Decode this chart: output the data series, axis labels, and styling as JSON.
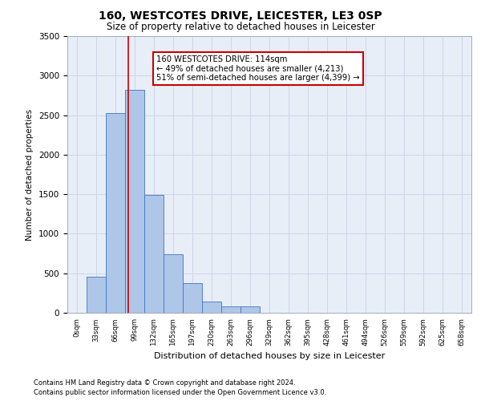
{
  "title1": "160, WESTCOTES DRIVE, LEICESTER, LE3 0SP",
  "title2": "Size of property relative to detached houses in Leicester",
  "xlabel": "Distribution of detached houses by size in Leicester",
  "ylabel": "Number of detached properties",
  "footnote1": "Contains HM Land Registry data © Crown copyright and database right 2024.",
  "footnote2": "Contains public sector information licensed under the Open Government Licence v3.0.",
  "bin_labels": [
    "0sqm",
    "33sqm",
    "66sqm",
    "99sqm",
    "132sqm",
    "165sqm",
    "197sqm",
    "230sqm",
    "263sqm",
    "296sqm",
    "329sqm",
    "362sqm",
    "395sqm",
    "428sqm",
    "461sqm",
    "494sqm",
    "526sqm",
    "559sqm",
    "592sqm",
    "625sqm",
    "658sqm"
  ],
  "bar_values": [
    5,
    460,
    2530,
    2820,
    1490,
    740,
    375,
    140,
    80,
    80,
    0,
    0,
    0,
    0,
    0,
    0,
    0,
    0,
    0,
    0,
    0
  ],
  "bar_color": "#aec6e8",
  "bar_edge_color": "#4472c4",
  "red_line_x": 3.15,
  "annotation_text": "160 WESTCOTES DRIVE: 114sqm\n← 49% of detached houses are smaller (4,213)\n51% of semi-detached houses are larger (4,399) →",
  "annotation_box_color": "#ffffff",
  "annotation_box_edge_color": "#cc0000",
  "red_line_color": "#cc0000",
  "ylim": [
    0,
    3500
  ],
  "yticks": [
    0,
    500,
    1000,
    1500,
    2000,
    2500,
    3000,
    3500
  ],
  "grid_color": "#ccd6e8",
  "background_color": "#e8eef8"
}
